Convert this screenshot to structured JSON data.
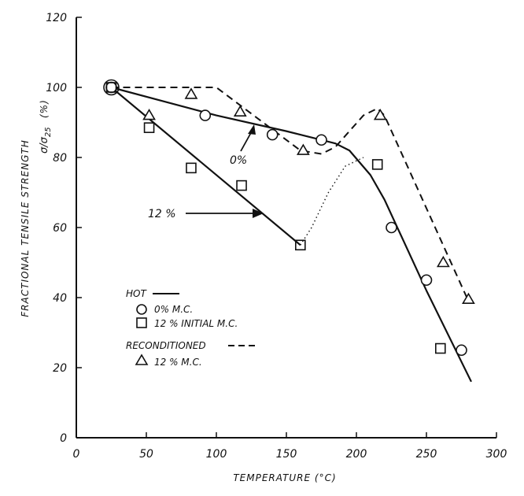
{
  "chart_data": {
    "type": "scatter",
    "xlabel": "TEMPERATURE (°C)",
    "ylabel": "FRACTIONAL TENSILE STRENGTH",
    "ylabel_symbol": "σ/σ",
    "ylabel_subscript": "25",
    "ylabel_unit": "(%)",
    "xlim": [
      0,
      300
    ],
    "ylim": [
      0,
      120
    ],
    "xticks": [
      0,
      50,
      100,
      150,
      200,
      250,
      300
    ],
    "yticks": [
      0,
      20,
      40,
      60,
      80,
      100,
      120
    ],
    "grid": false,
    "legend_position": "lower-left",
    "legend": {
      "hot_label": "HOT",
      "hot_0_label": "0% M.C.",
      "hot_12_label": "12 % INITIAL M.C.",
      "recond_label": "RECONDITIONED",
      "recond_12_label": "12 % M.C."
    },
    "annotations": {
      "zero_label": "0%",
      "twelve_label": "12 %"
    },
    "series": [
      {
        "name": "0% M.C.",
        "marker": "circle",
        "points": [
          [
            25,
            100
          ],
          [
            92,
            92
          ],
          [
            140,
            86.5
          ],
          [
            175,
            85
          ],
          [
            225,
            60
          ],
          [
            250,
            45
          ],
          [
            275,
            25
          ]
        ]
      },
      {
        "name": "12 % INITIAL M.C.",
        "marker": "square",
        "points": [
          [
            25,
            100
          ],
          [
            52,
            88.5
          ],
          [
            82,
            77
          ],
          [
            118,
            72
          ],
          [
            160,
            55
          ],
          [
            215,
            78
          ],
          [
            260,
            25.5
          ]
        ]
      },
      {
        "name": "12 % M.C.",
        "marker": "triangle",
        "points": [
          [
            52,
            92
          ],
          [
            82,
            98
          ],
          [
            117,
            93
          ],
          [
            162,
            82
          ],
          [
            217,
            92
          ],
          [
            262,
            50
          ],
          [
            280,
            39.5
          ]
        ]
      }
    ],
    "lines": [
      {
        "style": "solid",
        "points": [
          [
            25,
            100
          ],
          [
            100,
            92
          ],
          [
            150,
            87.5
          ],
          [
            185,
            84
          ],
          [
            195,
            82
          ],
          [
            210,
            75
          ],
          [
            220,
            68
          ],
          [
            250,
            42
          ],
          [
            282,
            16
          ]
        ]
      },
      {
        "style": "solid",
        "points": [
          [
            25,
            100
          ],
          [
            160,
            55
          ]
        ]
      },
      {
        "style": "dotted",
        "points": [
          [
            160,
            55
          ],
          [
            168,
            60
          ],
          [
            180,
            70
          ],
          [
            192,
            77.5
          ],
          [
            205,
            80
          ]
        ]
      },
      {
        "style": "dashed",
        "points": [
          [
            25,
            100
          ],
          [
            100,
            100
          ],
          [
            160,
            82
          ],
          [
            175,
            81
          ],
          [
            185,
            83
          ],
          [
            205,
            92
          ],
          [
            215,
            94
          ],
          [
            220,
            92
          ],
          [
            280,
            39
          ]
        ]
      }
    ]
  }
}
